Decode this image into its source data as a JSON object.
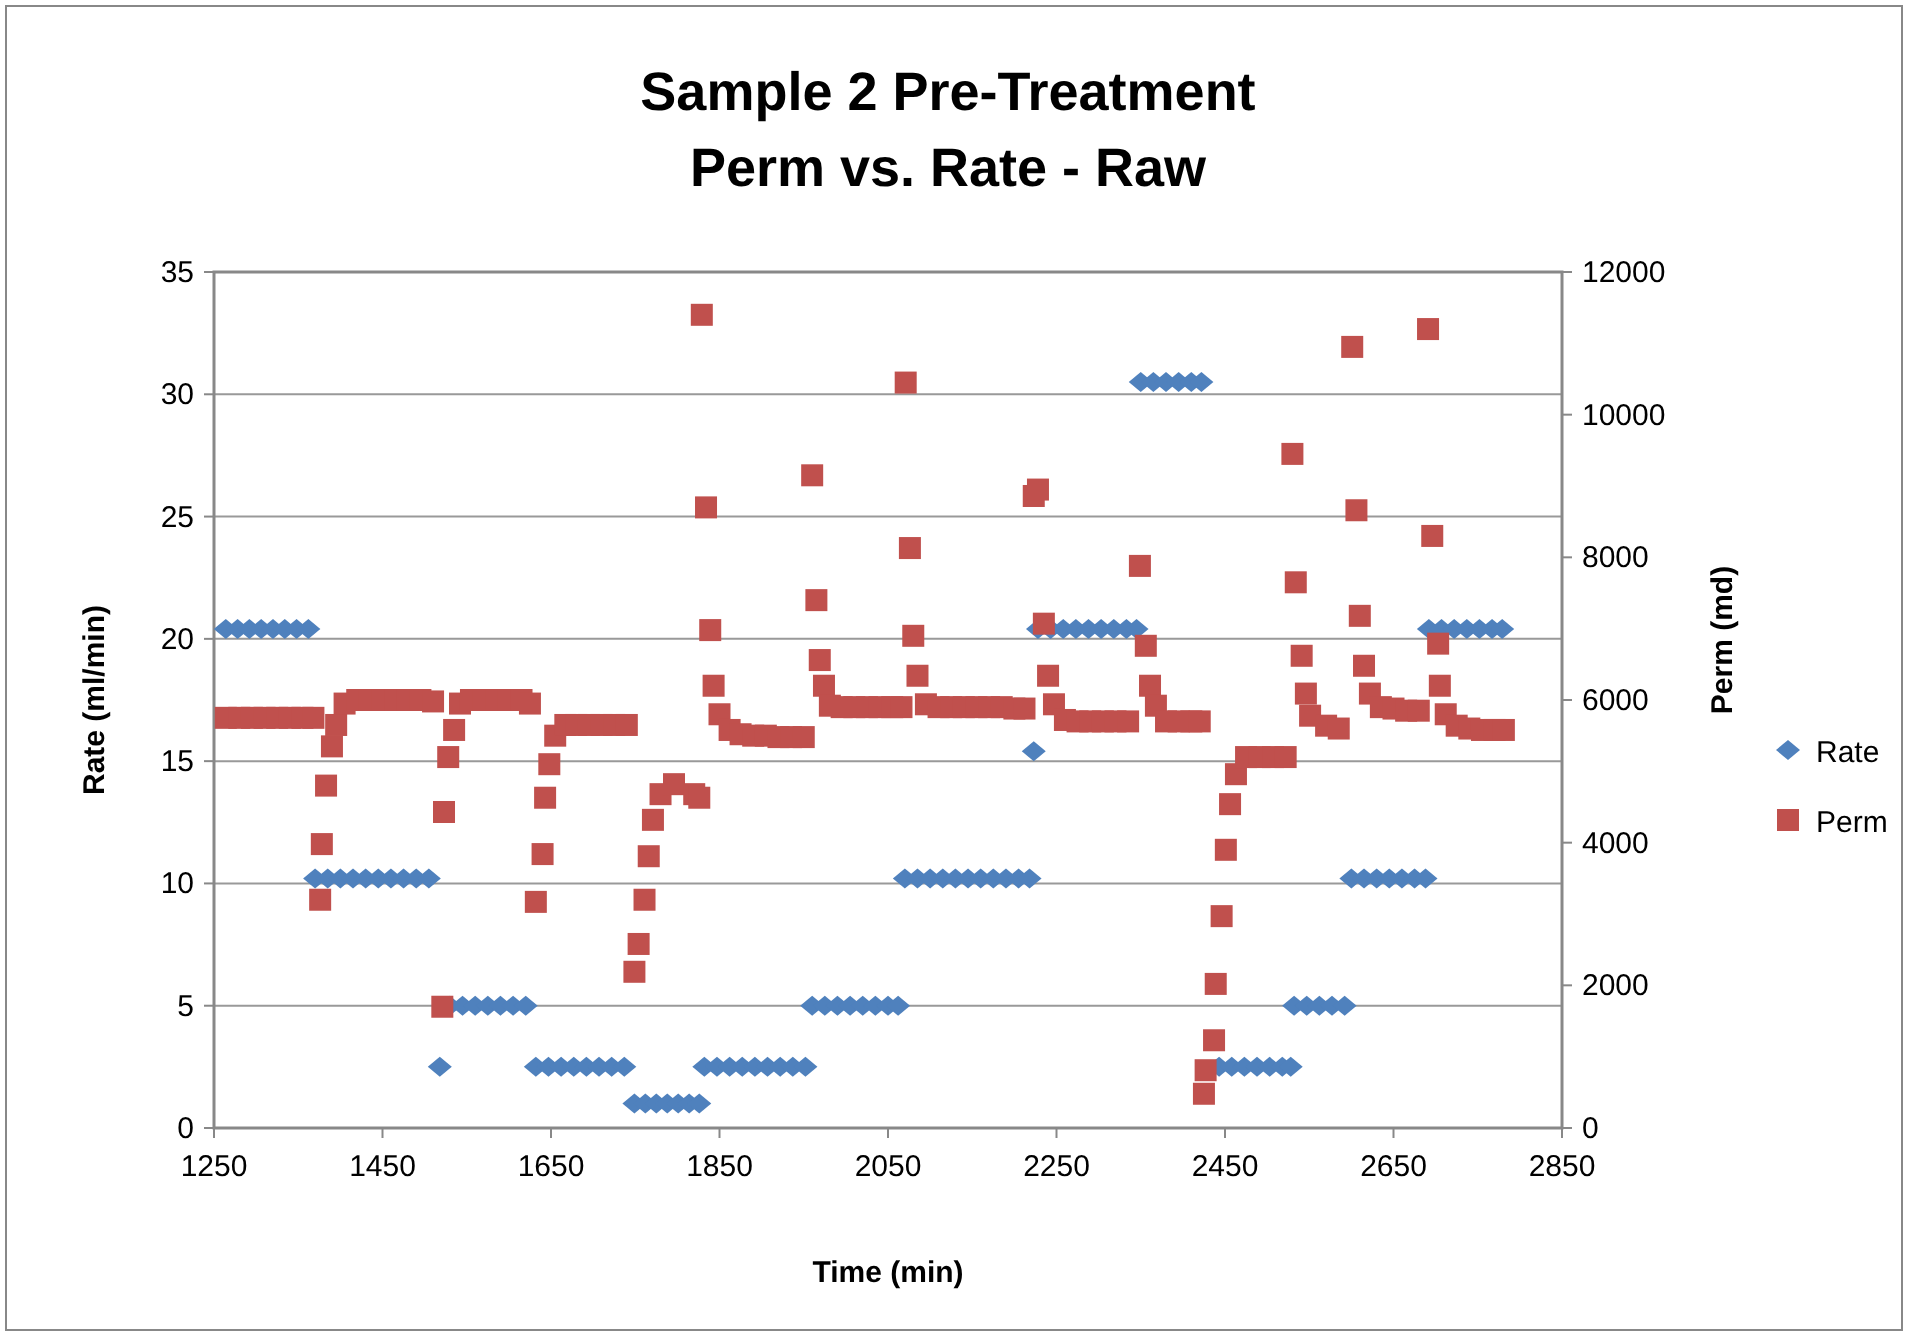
{
  "chart_data": {
    "type": "scatter",
    "title": "Sample 2 Pre-Treatment\nPerm vs. Rate - Raw",
    "xlabel": "Time (min)",
    "ylabel": "Rate (ml/min)",
    "y2label": "Perm (md)",
    "xlim": [
      1250,
      2850
    ],
    "xticks": [
      1250,
      1450,
      1650,
      1850,
      2050,
      2250,
      2450,
      2650,
      2850
    ],
    "ylim": [
      0,
      35
    ],
    "yticks": [
      0,
      5,
      10,
      15,
      20,
      25,
      30,
      35
    ],
    "y2lim": [
      0,
      12000
    ],
    "y2ticks": [
      0,
      2000,
      4000,
      6000,
      8000,
      10000,
      12000
    ],
    "grid": "y",
    "legend": "right",
    "series": [
      {
        "name": "Rate",
        "color": "#4f81bd",
        "marker": "diamond",
        "x": [
          1264,
          1278,
          1292,
          1306,
          1320,
          1334,
          1348,
          1362,
          1370,
          1385,
          1400,
          1415,
          1430,
          1445,
          1460,
          1475,
          1490,
          1505,
          1518,
          1530,
          1545,
          1560,
          1575,
          1590,
          1605,
          1620,
          1632,
          1647,
          1662,
          1677,
          1692,
          1707,
          1722,
          1737,
          1749,
          1762,
          1775,
          1788,
          1801,
          1814,
          1826,
          1832,
          1847,
          1862,
          1877,
          1892,
          1907,
          1922,
          1937,
          1952,
          1960,
          1975,
          1990,
          2005,
          2020,
          2035,
          2050,
          2062,
          2070,
          2085,
          2100,
          2115,
          2130,
          2145,
          2160,
          2175,
          2190,
          2205,
          2218,
          2223,
          2228,
          2243,
          2258,
          2273,
          2288,
          2303,
          2318,
          2333,
          2345,
          2350,
          2365,
          2380,
          2395,
          2410,
          2422,
          2443,
          2458,
          2473,
          2488,
          2503,
          2518,
          2528,
          2532,
          2547,
          2562,
          2577,
          2592,
          2600,
          2615,
          2630,
          2645,
          2660,
          2675,
          2688,
          2692,
          2707,
          2722,
          2737,
          2752,
          2767,
          2779
        ],
        "values": [
          20.4,
          20.4,
          20.4,
          20.4,
          20.4,
          20.4,
          20.4,
          20.4,
          10.2,
          10.2,
          10.2,
          10.2,
          10.2,
          10.2,
          10.2,
          10.2,
          10.2,
          10.2,
          2.5,
          5,
          5,
          5,
          5,
          5,
          5,
          5,
          2.5,
          2.5,
          2.5,
          2.5,
          2.5,
          2.5,
          2.5,
          2.5,
          1,
          1,
          1,
          1,
          1,
          1,
          1,
          2.5,
          2.5,
          2.5,
          2.5,
          2.5,
          2.5,
          2.5,
          2.5,
          2.5,
          5,
          5,
          5,
          5,
          5,
          5,
          5,
          5,
          10.2,
          10.2,
          10.2,
          10.2,
          10.2,
          10.2,
          10.2,
          10.2,
          10.2,
          10.2,
          10.2,
          15.4,
          20.4,
          20.4,
          20.4,
          20.4,
          20.4,
          20.4,
          20.4,
          20.4,
          20.4,
          30.5,
          30.5,
          30.5,
          30.5,
          30.5,
          30.5,
          2.5,
          2.5,
          2.5,
          2.5,
          2.5,
          2.5,
          2.5,
          5,
          5,
          5,
          5,
          5,
          10.2,
          10.2,
          10.2,
          10.2,
          10.2,
          10.2,
          10.2,
          20.4,
          20.4,
          20.4,
          20.4,
          20.4,
          20.4,
          20.4
        ]
      },
      {
        "name": "Perm",
        "color": "#c0504d",
        "marker": "square",
        "axis": "y2",
        "x": [
          1264,
          1280,
          1295,
          1310,
          1325,
          1340,
          1355,
          1368,
          1376,
          1378,
          1383,
          1390,
          1395,
          1405,
          1420,
          1435,
          1450,
          1465,
          1480,
          1495,
          1510,
          1521,
          1523,
          1528,
          1535,
          1542,
          1555,
          1570,
          1585,
          1600,
          1615,
          1625,
          1632,
          1640,
          1643,
          1648,
          1655,
          1667,
          1680,
          1695,
          1710,
          1725,
          1740,
          1749,
          1754,
          1761,
          1766,
          1771,
          1780,
          1796,
          1820,
          1826,
          1829,
          1834,
          1839,
          1843,
          1850,
          1862,
          1875,
          1890,
          1905,
          1920,
          1935,
          1950,
          1960,
          1965,
          1969,
          1974,
          1981,
          1995,
          2010,
          2025,
          2040,
          2055,
          2066,
          2071,
          2076,
          2080,
          2085,
          2095,
          2110,
          2125,
          2140,
          2155,
          2170,
          2185,
          2200,
          2212,
          2223,
          2228,
          2235,
          2240,
          2247,
          2260,
          2275,
          2290,
          2305,
          2320,
          2335,
          2349,
          2356,
          2361,
          2368,
          2380,
          2395,
          2410,
          2420,
          2425,
          2427,
          2437,
          2439,
          2446,
          2451,
          2456,
          2463,
          2475,
          2491,
          2507,
          2522,
          2530,
          2534,
          2541,
          2546,
          2551,
          2570,
          2585,
          2601,
          2606,
          2610,
          2615,
          2622,
          2635,
          2650,
          2665,
          2680,
          2691,
          2696,
          2703,
          2705,
          2712,
          2725,
          2740,
          2755,
          2770,
          2781
        ],
        "values": [
          5750,
          5750,
          5750,
          5750,
          5750,
          5750,
          5750,
          5750,
          3200,
          3980,
          4800,
          5350,
          5650,
          5950,
          6000,
          6000,
          6000,
          6000,
          6000,
          6000,
          5980,
          1700,
          4430,
          5200,
          5580,
          5950,
          6000,
          6000,
          6000,
          6000,
          6000,
          5950,
          3170,
          3840,
          4630,
          5100,
          5500,
          5650,
          5650,
          5650,
          5650,
          5650,
          5650,
          2190,
          2580,
          3200,
          3810,
          4320,
          4680,
          4820,
          4680,
          4630,
          11400,
          8700,
          6980,
          6200,
          5800,
          5580,
          5520,
          5500,
          5500,
          5480,
          5480,
          5480,
          9150,
          7400,
          6560,
          6200,
          5920,
          5900,
          5900,
          5900,
          5900,
          5900,
          5900,
          10450,
          8130,
          6900,
          6340,
          5940,
          5900,
          5900,
          5900,
          5900,
          5900,
          5900,
          5880,
          5880,
          8860,
          8950,
          7070,
          6340,
          5940,
          5720,
          5700,
          5700,
          5700,
          5700,
          5700,
          7880,
          6760,
          6200,
          5920,
          5700,
          5700,
          5700,
          5700,
          480,
          810,
          1230,
          2020,
          2970,
          3900,
          4540,
          4960,
          5200,
          5200,
          5200,
          5200,
          9450,
          7650,
          6620,
          6090,
          5780,
          5640,
          5600,
          10950,
          8660,
          7180,
          6480,
          6090,
          5900,
          5880,
          5850,
          5850,
          11200,
          8300,
          6790,
          6200,
          5800,
          5640,
          5600,
          5580,
          5580,
          5580
        ]
      }
    ]
  }
}
